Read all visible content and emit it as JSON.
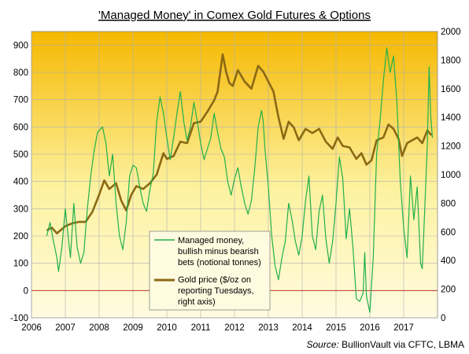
{
  "chart_data": {
    "type": "line",
    "title": "'Managed Money' in Comex Gold Futures & Options",
    "source_label": "Source:",
    "source_text": " BullionVault via CFTC, LBMA",
    "x_ticks": [
      "2006",
      "2007",
      "2008",
      "2009",
      "2010",
      "2011",
      "2012",
      "2013",
      "2014",
      "2015",
      "2016",
      "2017"
    ],
    "xlim": [
      2006.0,
      2018.0
    ],
    "y_left": {
      "ticks": [
        900,
        800,
        700,
        600,
        500,
        400,
        300,
        200,
        100,
        0,
        -100
      ],
      "ylim": [
        -100,
        950
      ]
    },
    "y_right": {
      "ticks": [
        2000,
        1800,
        1600,
        1400,
        1200,
        1000,
        800,
        600,
        400,
        200,
        0
      ],
      "ylim": [
        0,
        2000
      ]
    },
    "zero_line_color": "#c0392b",
    "background_gradient": [
      "#f5b800",
      "#fdf2a0",
      "#fffbe0"
    ],
    "series": [
      {
        "name": "Managed money, bullish minus bearish bets (notional tonnes)",
        "legend_lines": [
          "Managed money,",
          "bullish minus bearish",
          "bets (notional tonnes)"
        ],
        "axis": "left",
        "color": "#22b04b",
        "points": [
          [
            2006.45,
            200
          ],
          [
            2006.55,
            250
          ],
          [
            2006.65,
            180
          ],
          [
            2006.75,
            120
          ],
          [
            2006.8,
            70
          ],
          [
            2006.9,
            160
          ],
          [
            2007.0,
            300
          ],
          [
            2007.1,
            180
          ],
          [
            2007.15,
            120
          ],
          [
            2007.25,
            320
          ],
          [
            2007.35,
            160
          ],
          [
            2007.45,
            100
          ],
          [
            2007.55,
            140
          ],
          [
            2007.65,
            300
          ],
          [
            2007.75,
            420
          ],
          [
            2007.85,
            510
          ],
          [
            2007.95,
            580
          ],
          [
            2008.1,
            600
          ],
          [
            2008.2,
            540
          ],
          [
            2008.3,
            420
          ],
          [
            2008.4,
            500
          ],
          [
            2008.5,
            320
          ],
          [
            2008.6,
            200
          ],
          [
            2008.7,
            150
          ],
          [
            2008.8,
            250
          ],
          [
            2008.9,
            420
          ],
          [
            2009.0,
            460
          ],
          [
            2009.1,
            450
          ],
          [
            2009.2,
            380
          ],
          [
            2009.3,
            320
          ],
          [
            2009.4,
            290
          ],
          [
            2009.5,
            370
          ],
          [
            2009.6,
            430
          ],
          [
            2009.7,
            620
          ],
          [
            2009.8,
            710
          ],
          [
            2009.9,
            650
          ],
          [
            2010.0,
            560
          ],
          [
            2010.1,
            480
          ],
          [
            2010.2,
            560
          ],
          [
            2010.3,
            650
          ],
          [
            2010.4,
            730
          ],
          [
            2010.5,
            620
          ],
          [
            2010.6,
            550
          ],
          [
            2010.7,
            600
          ],
          [
            2010.8,
            690
          ],
          [
            2010.9,
            620
          ],
          [
            2011.0,
            540
          ],
          [
            2011.1,
            480
          ],
          [
            2011.2,
            520
          ],
          [
            2011.3,
            560
          ],
          [
            2011.4,
            650
          ],
          [
            2011.5,
            580
          ],
          [
            2011.6,
            520
          ],
          [
            2011.7,
            490
          ],
          [
            2011.8,
            400
          ],
          [
            2011.9,
            350
          ],
          [
            2012.0,
            410
          ],
          [
            2012.1,
            450
          ],
          [
            2012.2,
            380
          ],
          [
            2012.3,
            320
          ],
          [
            2012.4,
            280
          ],
          [
            2012.5,
            330
          ],
          [
            2012.6,
            450
          ],
          [
            2012.7,
            600
          ],
          [
            2012.8,
            660
          ],
          [
            2012.85,
            620
          ],
          [
            2012.9,
            520
          ],
          [
            2013.0,
            380
          ],
          [
            2013.1,
            200
          ],
          [
            2013.2,
            90
          ],
          [
            2013.3,
            40
          ],
          [
            2013.4,
            120
          ],
          [
            2013.5,
            180
          ],
          [
            2013.6,
            320
          ],
          [
            2013.7,
            260
          ],
          [
            2013.8,
            180
          ],
          [
            2013.9,
            130
          ],
          [
            2014.0,
            200
          ],
          [
            2014.1,
            330
          ],
          [
            2014.2,
            420
          ],
          [
            2014.3,
            200
          ],
          [
            2014.4,
            150
          ],
          [
            2014.5,
            290
          ],
          [
            2014.6,
            350
          ],
          [
            2014.7,
            190
          ],
          [
            2014.8,
            100
          ],
          [
            2014.9,
            180
          ],
          [
            2015.0,
            320
          ],
          [
            2015.1,
            490
          ],
          [
            2015.2,
            410
          ],
          [
            2015.3,
            190
          ],
          [
            2015.4,
            300
          ],
          [
            2015.5,
            160
          ],
          [
            2015.6,
            -30
          ],
          [
            2015.7,
            -40
          ],
          [
            2015.8,
            -10
          ],
          [
            2015.85,
            140
          ],
          [
            2015.9,
            -20
          ],
          [
            2016.0,
            -80
          ],
          [
            2016.1,
            120
          ],
          [
            2016.2,
            500
          ],
          [
            2016.3,
            620
          ],
          [
            2016.4,
            770
          ],
          [
            2016.5,
            890
          ],
          [
            2016.6,
            800
          ],
          [
            2016.7,
            860
          ],
          [
            2016.8,
            690
          ],
          [
            2016.9,
            400
          ],
          [
            2017.0,
            230
          ],
          [
            2017.1,
            120
          ],
          [
            2017.2,
            420
          ],
          [
            2017.3,
            260
          ],
          [
            2017.4,
            380
          ],
          [
            2017.5,
            100
          ],
          [
            2017.55,
            80
          ],
          [
            2017.6,
            230
          ],
          [
            2017.7,
            540
          ],
          [
            2017.75,
            820
          ],
          [
            2017.8,
            640
          ],
          [
            2017.85,
            560
          ]
        ]
      },
      {
        "name": "Gold price ($/oz on reporting Tuesdays, right axis)",
        "legend_lines": [
          "Gold price ($/oz on",
          "reporting Tuesdays,",
          "right axis)"
        ],
        "axis": "right",
        "color": "#8b6914",
        "points": [
          [
            2006.45,
            610
          ],
          [
            2006.6,
            630
          ],
          [
            2006.75,
            590
          ],
          [
            2006.9,
            620
          ],
          [
            2007.0,
            640
          ],
          [
            2007.2,
            660
          ],
          [
            2007.4,
            670
          ],
          [
            2007.6,
            670
          ],
          [
            2007.8,
            740
          ],
          [
            2008.0,
            860
          ],
          [
            2008.15,
            960
          ],
          [
            2008.3,
            900
          ],
          [
            2008.5,
            940
          ],
          [
            2008.65,
            820
          ],
          [
            2008.8,
            750
          ],
          [
            2008.95,
            860
          ],
          [
            2009.1,
            920
          ],
          [
            2009.3,
            900
          ],
          [
            2009.5,
            940
          ],
          [
            2009.7,
            1000
          ],
          [
            2009.9,
            1150
          ],
          [
            2010.0,
            1110
          ],
          [
            2010.2,
            1130
          ],
          [
            2010.4,
            1230
          ],
          [
            2010.6,
            1220
          ],
          [
            2010.8,
            1360
          ],
          [
            2011.0,
            1370
          ],
          [
            2011.2,
            1440
          ],
          [
            2011.4,
            1520
          ],
          [
            2011.5,
            1580
          ],
          [
            2011.65,
            1840
          ],
          [
            2011.75,
            1720
          ],
          [
            2011.85,
            1640
          ],
          [
            2011.95,
            1620
          ],
          [
            2012.1,
            1730
          ],
          [
            2012.3,
            1650
          ],
          [
            2012.5,
            1600
          ],
          [
            2012.7,
            1760
          ],
          [
            2012.85,
            1720
          ],
          [
            2013.0,
            1650
          ],
          [
            2013.15,
            1580
          ],
          [
            2013.3,
            1400
          ],
          [
            2013.45,
            1250
          ],
          [
            2013.6,
            1370
          ],
          [
            2013.75,
            1330
          ],
          [
            2013.9,
            1240
          ],
          [
            2014.1,
            1320
          ],
          [
            2014.3,
            1290
          ],
          [
            2014.5,
            1320
          ],
          [
            2014.7,
            1230
          ],
          [
            2014.9,
            1180
          ],
          [
            2015.05,
            1260
          ],
          [
            2015.2,
            1200
          ],
          [
            2015.4,
            1190
          ],
          [
            2015.6,
            1110
          ],
          [
            2015.75,
            1150
          ],
          [
            2015.9,
            1070
          ],
          [
            2016.05,
            1100
          ],
          [
            2016.2,
            1240
          ],
          [
            2016.4,
            1260
          ],
          [
            2016.55,
            1350
          ],
          [
            2016.7,
            1320
          ],
          [
            2016.85,
            1250
          ],
          [
            2016.95,
            1130
          ],
          [
            2017.1,
            1220
          ],
          [
            2017.25,
            1240
          ],
          [
            2017.4,
            1260
          ],
          [
            2017.55,
            1220
          ],
          [
            2017.7,
            1310
          ],
          [
            2017.8,
            1280
          ],
          [
            2017.85,
            1280
          ]
        ]
      }
    ]
  }
}
